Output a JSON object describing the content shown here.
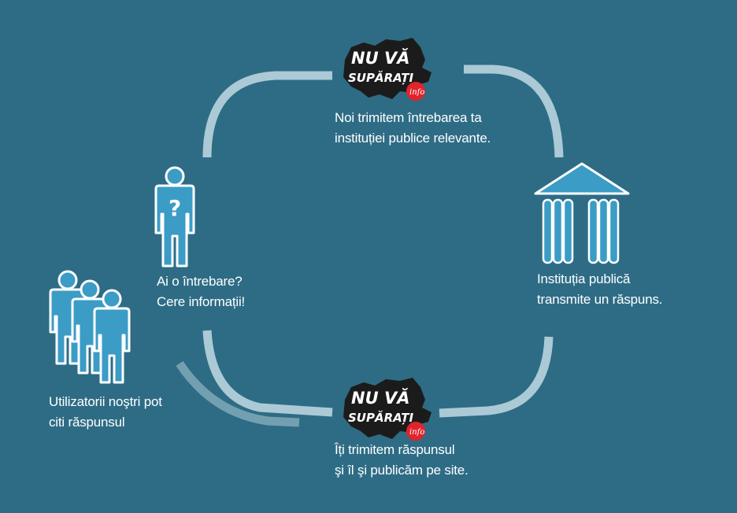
{
  "colors": {
    "background": "#2e6c85",
    "arc": "#b9d5df",
    "icon_fill": "#3b9cc6",
    "icon_stroke": "#ffffff",
    "logo_black": "#1c1b1b",
    "logo_red": "#e0242b"
  },
  "logo": {
    "line1": "NU VĂ",
    "line2": "SUPĂRAȚI",
    "tag": "info"
  },
  "steps": {
    "send": {
      "line1": "Noi trimitem întrebarea ta",
      "line2": "instituției publice relevante."
    },
    "institution": {
      "line1": "Instituția publică",
      "line2": "transmite un răspuns."
    },
    "publish": {
      "line1": "Îți trimitem răspunsul",
      "line2": "şi îl şi publicăm pe site."
    },
    "read": {
      "line1": "Utilizatorii noştri pot",
      "line2": "citi răspunsul"
    },
    "ask": {
      "line1": "Ai o întrebare?",
      "line2": "Cere informații!"
    }
  },
  "icons": {
    "questioner": "person-question-icon",
    "institution": "institution-building-icon",
    "users": "users-group-icon",
    "question_mark": "?"
  }
}
